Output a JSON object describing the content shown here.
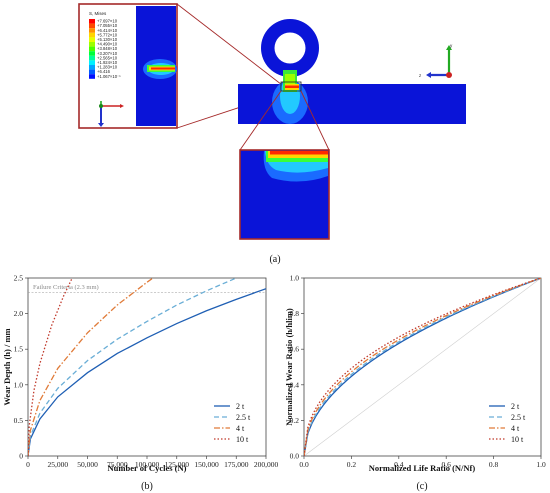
{
  "figure": {
    "labels": {
      "a": "(a)",
      "b": "(b)",
      "c": "(c)"
    },
    "contour": {
      "title": "S, Mises",
      "levels": [
        "+7.697×10",
        "+7.055×10",
        "+6.414×10",
        "+5.772×10",
        "+5.130×10",
        "+4.490×10",
        "+3.848×10",
        "+3.207×10",
        "+2.565×10",
        "+1.924×10",
        "+1.283×10",
        "+6.416",
        "+1.067×10⁻¹"
      ],
      "colors": [
        "#ff0000",
        "#ff4a00",
        "#ff9200",
        "#ffd500",
        "#e6ff00",
        "#9cff00",
        "#4dff00",
        "#00ff3a",
        "#00ff9a",
        "#00f0ff",
        "#00a6ff",
        "#005bff",
        "#0010ff"
      ],
      "triad_left": {
        "x": "x",
        "y": "y"
      },
      "triad_right": {
        "z": "z",
        "y": "y"
      }
    }
  },
  "chart_data": [
    {
      "type": "line",
      "panel": "(b)",
      "xlabel": "Number of Cycles (N)",
      "ylabel": "Wear Depth (h) / mm",
      "xlim": [
        0,
        200000
      ],
      "ylim": [
        0,
        2.5
      ],
      "xticks": [
        "0",
        "25,000",
        "50,000",
        "75,000",
        "100,000",
        "125,000",
        "150,000",
        "175,000",
        "200,000"
      ],
      "yticks": [
        "0",
        "0.5",
        "1.0",
        "1.5",
        "2.0",
        "2.5"
      ],
      "annotation": "Failure Criteria (2.3 mm)",
      "threshold": 2.3,
      "legend_position": "bottom-right",
      "series": [
        {
          "name": "2 t",
          "color": "#1f5fb4",
          "dash": "",
          "points": [
            [
              0,
              0
            ],
            [
              2000,
              0.24
            ],
            [
              10000,
              0.52
            ],
            [
              25000,
              0.83
            ],
            [
              50000,
              1.17
            ],
            [
              75000,
              1.44
            ],
            [
              100000,
              1.66
            ],
            [
              125000,
              1.86
            ],
            [
              150000,
              2.04
            ],
            [
              175000,
              2.2
            ],
            [
              200000,
              2.35
            ]
          ]
        },
        {
          "name": "2.5 t",
          "color": "#6aaed6",
          "dash": "5,3",
          "points": [
            [
              0,
              0
            ],
            [
              2000,
              0.28
            ],
            [
              10000,
              0.6
            ],
            [
              25000,
              0.95
            ],
            [
              50000,
              1.34
            ],
            [
              75000,
              1.64
            ],
            [
              100000,
              1.89
            ],
            [
              125000,
              2.12
            ],
            [
              150000,
              2.32
            ],
            [
              175000,
              2.5
            ],
            [
              190000,
              2.6
            ]
          ]
        },
        {
          "name": "4 t",
          "color": "#e07b39",
          "dash": "6,2,1.5,2",
          "points": [
            [
              0,
              0
            ],
            [
              2000,
              0.36
            ],
            [
              10000,
              0.78
            ],
            [
              25000,
              1.23
            ],
            [
              50000,
              1.73
            ],
            [
              75000,
              2.12
            ],
            [
              100000,
              2.44
            ],
            [
              110000,
              2.56
            ]
          ]
        },
        {
          "name": "10 t",
          "color": "#c0392b",
          "dash": "1.5,2",
          "points": [
            [
              0,
              0
            ],
            [
              1000,
              0.42
            ],
            [
              5000,
              0.92
            ],
            [
              10000,
              1.3
            ],
            [
              20000,
              1.84
            ],
            [
              30000,
              2.25
            ],
            [
              40000,
              2.6
            ]
          ]
        }
      ]
    },
    {
      "type": "line",
      "panel": "(c)",
      "xlabel": "Normalized Life Ratio (N/Nf)",
      "ylabel": "Normalized Wear Ratio (h/hlim)",
      "xlim": [
        0,
        1
      ],
      "ylim": [
        0,
        1
      ],
      "xticks": [
        "0.0",
        "0.2",
        "0.4",
        "0.6",
        "0.8",
        "1.0"
      ],
      "yticks": [
        "0.0",
        "0.2",
        "0.4",
        "0.6",
        "0.8",
        "1.0"
      ],
      "legend_position": "bottom-right",
      "series": [
        {
          "name": "2 t",
          "color": "#1f5fb4",
          "dash": "",
          "exponent": 0.5
        },
        {
          "name": "2.5 t",
          "color": "#6aaed6",
          "dash": "5,3",
          "exponent": 0.485
        },
        {
          "name": "4 t",
          "color": "#e07b39",
          "dash": "6,2,1.5,2",
          "exponent": 0.465
        },
        {
          "name": "10 t",
          "color": "#c0392b",
          "dash": "1.5,2",
          "exponent": 0.44
        }
      ]
    }
  ]
}
